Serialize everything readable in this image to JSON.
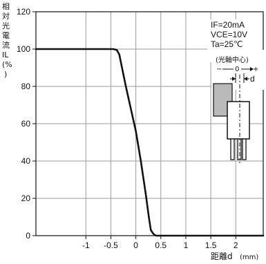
{
  "chart_data": {
    "type": "line",
    "ylabel_chars": [
      "相",
      "対",
      "光",
      "電",
      "流",
      "IL",
      "(%"
    ],
    "ylabel_close": ")",
    "xlabel": "距離d",
    "xunit": "(mm)",
    "xlim": [
      -2.0,
      2.55
    ],
    "ylim": [
      0,
      120
    ],
    "x_ticks": [
      -1,
      -0.5,
      0,
      0.5,
      1,
      1.5,
      2
    ],
    "x_tick_labels": [
      "-1",
      "-0.5",
      "0",
      "0.5",
      "1",
      "1.5",
      "2"
    ],
    "y_ticks": [
      0,
      20,
      40,
      60,
      80,
      100,
      120
    ],
    "y_tick_labels": [
      "0",
      "20",
      "40",
      "60",
      "80",
      "100",
      "120"
    ],
    "grid": true,
    "series": [
      {
        "x": [
          -2.0,
          -0.45,
          -0.38,
          -0.33,
          -0.3,
          -0.2,
          -0.1,
          0.0,
          0.1,
          0.2,
          0.26,
          0.3,
          0.35,
          0.4,
          2.55
        ],
        "y": [
          100,
          100,
          99.5,
          97,
          93,
          80,
          68,
          56,
          40,
          22,
          10,
          3,
          1,
          0,
          0
        ]
      }
    ],
    "conditions": [
      "IF=20mA",
      "VCE=10V",
      "Ta=25℃"
    ],
    "inset": {
      "title": "(光軸中心)",
      "scale_label": "0",
      "minus": "−",
      "plus": "+",
      "d_label": "d"
    }
  },
  "colors": {
    "line": "#111111",
    "grid": "#9a9a9a",
    "axis": "#111111",
    "block": "#b9b9b9"
  }
}
